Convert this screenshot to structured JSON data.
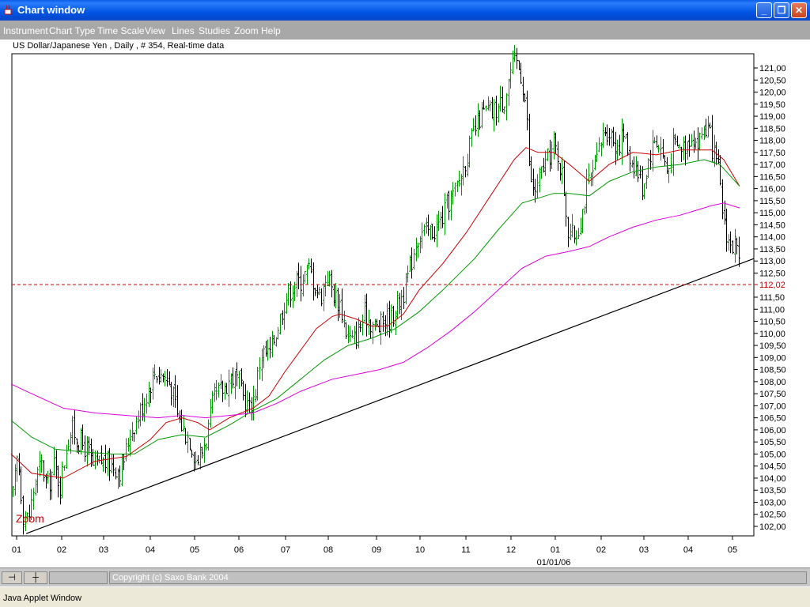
{
  "window": {
    "title": "Chart window",
    "controls": [
      "minimize",
      "maximize",
      "close"
    ]
  },
  "menu": [
    "Instrument",
    "Chart Type",
    "Time Scale",
    "View",
    "Lines",
    "Studies",
    "Zoom",
    "Help"
  ],
  "chart_header": "US Dollar/Japanese Yen , Daily , # 354, Real-time data",
  "chart_data": {
    "type": "ohlc",
    "instrument": "US Dollar/Japanese Yen",
    "timeframe": "Daily",
    "bars": 354,
    "ylim": [
      101.6,
      121.9
    ],
    "y_ticks": [
      "102,00",
      "102,50",
      "103,00",
      "103,50",
      "104,00",
      "104,50",
      "105,00",
      "105,50",
      "106,00",
      "106,50",
      "107,00",
      "107,50",
      "108,00",
      "108,50",
      "109,00",
      "109,50",
      "110,00",
      "110,50",
      "111,00",
      "111,50",
      "112,00",
      "112,50",
      "113,00",
      "113,50",
      "114,00",
      "114,50",
      "115,00",
      "115,50",
      "116,00",
      "116,50",
      "117,00",
      "117,50",
      "118,00",
      "118,50",
      "119,00",
      "119,50",
      "120,00",
      "120,50",
      "121,00"
    ],
    "x_ticks": [
      "01",
      "02",
      "03",
      "04",
      "05",
      "06",
      "07",
      "08",
      "09",
      "10",
      "11",
      "12",
      "01",
      "02",
      "03",
      "04",
      "05"
    ],
    "x_sub_label": "01/01/06",
    "current_price": "112,02",
    "current_price_value": 112.02,
    "price_path": [
      [
        0,
        103.4
      ],
      [
        8,
        104.3
      ],
      [
        15,
        103.0
      ],
      [
        22,
        105.0
      ],
      [
        29,
        102.5
      ],
      [
        36,
        102.3
      ],
      [
        44,
        103.9
      ],
      [
        52,
        104.6
      ],
      [
        60,
        103.6
      ],
      [
        68,
        104.5
      ],
      [
        76,
        103.7
      ],
      [
        85,
        105.6
      ],
      [
        92,
        106.0
      ],
      [
        100,
        105.5
      ],
      [
        110,
        105.2
      ],
      [
        118,
        104.4
      ],
      [
        128,
        104.7
      ],
      [
        138,
        104.6
      ],
      [
        145,
        104.5
      ],
      [
        152,
        104.3
      ],
      [
        158,
        105.0
      ],
      [
        165,
        106.0
      ],
      [
        175,
        106.6
      ],
      [
        185,
        107.5
      ],
      [
        195,
        108.4
      ],
      [
        205,
        108.3
      ],
      [
        215,
        107.9
      ],
      [
        225,
        106.5
      ],
      [
        232,
        106.0
      ],
      [
        240,
        105.6
      ],
      [
        248,
        104.7
      ],
      [
        255,
        105.1
      ],
      [
        262,
        105.9
      ],
      [
        270,
        107.3
      ],
      [
        282,
        107.7
      ],
      [
        292,
        108.2
      ],
      [
        300,
        108.1
      ],
      [
        308,
        107.3
      ],
      [
        315,
        106.9
      ],
      [
        322,
        107.5
      ],
      [
        330,
        109.2
      ],
      [
        340,
        109.1
      ],
      [
        350,
        110.2
      ],
      [
        360,
        111.4
      ],
      [
        370,
        112.0
      ],
      [
        380,
        112.2
      ],
      [
        390,
        112.7
      ],
      [
        398,
        112.0
      ],
      [
        405,
        111.5
      ],
      [
        413,
        112.5
      ],
      [
        422,
        111.6
      ],
      [
        430,
        111.2
      ],
      [
        438,
        110.0
      ],
      [
        446,
        109.6
      ],
      [
        455,
        110.3
      ],
      [
        462,
        110.8
      ],
      [
        470,
        110.4
      ],
      [
        478,
        110.2
      ],
      [
        486,
        110.6
      ],
      [
        494,
        110.6
      ],
      [
        502,
        111.2
      ],
      [
        510,
        111.7
      ],
      [
        518,
        112.7
      ],
      [
        526,
        113.9
      ],
      [
        534,
        114.2
      ],
      [
        542,
        114.2
      ],
      [
        550,
        114.3
      ],
      [
        558,
        114.7
      ],
      [
        566,
        115.4
      ],
      [
        574,
        115.8
      ],
      [
        582,
        116.5
      ],
      [
        590,
        117.4
      ],
      [
        598,
        118.2
      ],
      [
        606,
        118.9
      ],
      [
        614,
        119.2
      ],
      [
        622,
        119.1
      ],
      [
        630,
        119.4
      ],
      [
        638,
        119.8
      ],
      [
        646,
        121.0
      ],
      [
        654,
        121.2
      ],
      [
        660,
        120.5
      ],
      [
        665,
        119.3
      ],
      [
        670,
        116.2
      ],
      [
        678,
        115.9
      ],
      [
        685,
        116.8
      ],
      [
        692,
        117.2
      ],
      [
        700,
        117.8
      ],
      [
        706,
        117.3
      ],
      [
        712,
        116.2
      ],
      [
        718,
        114.3
      ],
      [
        724,
        114.0
      ],
      [
        730,
        114.3
      ],
      [
        736,
        115.1
      ],
      [
        742,
        116.1
      ],
      [
        748,
        116.5
      ],
      [
        756,
        117.4
      ],
      [
        764,
        118.5
      ],
      [
        772,
        118.3
      ],
      [
        780,
        117.7
      ],
      [
        788,
        118.3
      ],
      [
        796,
        117.3
      ],
      [
        804,
        116.9
      ],
      [
        812,
        116.0
      ],
      [
        820,
        117.3
      ],
      [
        828,
        118.1
      ],
      [
        836,
        117.6
      ],
      [
        844,
        116.6
      ],
      [
        850,
        117.8
      ],
      [
        858,
        117.7
      ],
      [
        866,
        117.8
      ],
      [
        874,
        118.3
      ],
      [
        882,
        117.8
      ],
      [
        890,
        118.6
      ],
      [
        896,
        118.3
      ],
      [
        902,
        117.4
      ],
      [
        908,
        116.7
      ],
      [
        912,
        115.3
      ],
      [
        918,
        114.2
      ],
      [
        924,
        113.5
      ],
      [
        930,
        113.8
      ],
      [
        936,
        112.02
      ]
    ],
    "moving_averages": [
      {
        "color": "#cc0000",
        "points": [
          [
            14,
            105.0
          ],
          [
            40,
            104.2
          ],
          [
            80,
            104.0
          ],
          [
            120,
            104.7
          ],
          [
            160,
            104.9
          ],
          [
            190,
            105.6
          ],
          [
            210,
            106.3
          ],
          [
            230,
            106.5
          ],
          [
            250,
            106.3
          ],
          [
            265,
            106.0
          ],
          [
            290,
            106.5
          ],
          [
            320,
            106.9
          ],
          [
            340,
            107.4
          ],
          [
            360,
            108.4
          ],
          [
            380,
            109.3
          ],
          [
            400,
            110.2
          ],
          [
            420,
            110.7
          ],
          [
            430,
            110.8
          ],
          [
            450,
            110.6
          ],
          [
            470,
            110.3
          ],
          [
            490,
            110.3
          ],
          [
            510,
            110.8
          ],
          [
            530,
            111.8
          ],
          [
            560,
            112.9
          ],
          [
            590,
            114.2
          ],
          [
            620,
            115.7
          ],
          [
            650,
            117.2
          ],
          [
            665,
            117.7
          ],
          [
            680,
            117.5
          ],
          [
            700,
            117.5
          ],
          [
            720,
            117.0
          ],
          [
            745,
            116.3
          ],
          [
            770,
            117.0
          ],
          [
            800,
            117.5
          ],
          [
            830,
            117.4
          ],
          [
            860,
            117.6
          ],
          [
            880,
            117.6
          ],
          [
            900,
            117.6
          ],
          [
            915,
            117.2
          ],
          [
            935,
            116.1
          ]
        ]
      },
      {
        "color": "#009900",
        "points": [
          [
            14,
            106.4
          ],
          [
            40,
            105.7
          ],
          [
            70,
            105.2
          ],
          [
            100,
            105.1
          ],
          [
            140,
            105.0
          ],
          [
            170,
            105.0
          ],
          [
            200,
            105.6
          ],
          [
            230,
            105.8
          ],
          [
            260,
            105.7
          ],
          [
            290,
            106.2
          ],
          [
            320,
            106.8
          ],
          [
            350,
            107.3
          ],
          [
            380,
            108.1
          ],
          [
            410,
            108.9
          ],
          [
            440,
            109.5
          ],
          [
            470,
            109.8
          ],
          [
            500,
            110.2
          ],
          [
            530,
            110.9
          ],
          [
            560,
            111.8
          ],
          [
            600,
            113.1
          ],
          [
            630,
            114.3
          ],
          [
            660,
            115.4
          ],
          [
            680,
            115.6
          ],
          [
            700,
            115.8
          ],
          [
            720,
            115.8
          ],
          [
            745,
            115.7
          ],
          [
            770,
            116.3
          ],
          [
            800,
            116.7
          ],
          [
            830,
            116.9
          ],
          [
            860,
            117.0
          ],
          [
            890,
            117.2
          ],
          [
            910,
            117.0
          ],
          [
            935,
            116.1
          ]
        ]
      },
      {
        "color": "#dd00dd",
        "points": [
          [
            14,
            107.9
          ],
          [
            40,
            107.5
          ],
          [
            80,
            106.9
          ],
          [
            120,
            106.7
          ],
          [
            160,
            106.6
          ],
          [
            200,
            106.5
          ],
          [
            230,
            106.6
          ],
          [
            260,
            106.5
          ],
          [
            290,
            106.6
          ],
          [
            320,
            106.7
          ],
          [
            350,
            107.1
          ],
          [
            380,
            107.6
          ],
          [
            420,
            108.1
          ],
          [
            450,
            108.3
          ],
          [
            480,
            108.5
          ],
          [
            510,
            108.8
          ],
          [
            540,
            109.4
          ],
          [
            570,
            110.1
          ],
          [
            600,
            110.9
          ],
          [
            630,
            111.8
          ],
          [
            660,
            112.7
          ],
          [
            690,
            113.2
          ],
          [
            720,
            113.4
          ],
          [
            745,
            113.6
          ],
          [
            770,
            114.0
          ],
          [
            800,
            114.4
          ],
          [
            830,
            114.7
          ],
          [
            860,
            114.9
          ],
          [
            880,
            115.1
          ],
          [
            900,
            115.3
          ],
          [
            915,
            115.4
          ],
          [
            935,
            115.2
          ]
        ]
      }
    ],
    "trendline": {
      "color": "#000000",
      "from": [
        33,
        101.7
      ],
      "to": [
        936,
        112.9
      ]
    },
    "label_zoom": "Zoom"
  },
  "status": {
    "copyright": "Copyright (c) Saxo Bank 2004"
  },
  "applet": "Java Applet Window"
}
